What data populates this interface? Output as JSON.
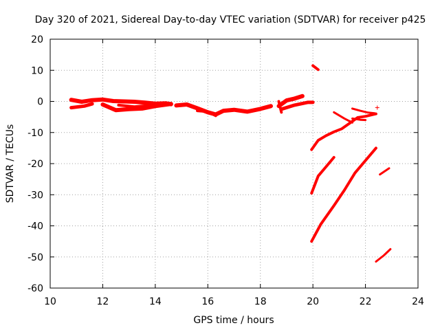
{
  "chart_data": {
    "type": "scatter",
    "title": "Day 320 of 2021, Sidereal Day-to-day VTEC variation (SDTVAR) for receiver p425",
    "xlabel": "GPS time / hours",
    "ylabel": "SDTVAR / TECUs",
    "xlim": [
      10,
      24
    ],
    "ylim": [
      -60,
      20
    ],
    "xticks": [
      10,
      12,
      14,
      16,
      18,
      20,
      22,
      24
    ],
    "yticks": [
      20,
      10,
      0,
      -10,
      -20,
      -30,
      -40,
      -50,
      -60
    ],
    "xtick_labels": [
      "10",
      "12",
      "14",
      "16",
      "18",
      "20",
      "22",
      "24"
    ],
    "ytick_labels": [
      "20",
      "10",
      "0",
      "-10",
      "-20",
      "-30",
      "-40",
      "-50",
      "-60"
    ],
    "grid": true,
    "color": "#ff0000",
    "series": [
      {
        "segments": [
          {
            "points": [
              [
                10.8,
                0.5
              ],
              [
                11.2,
                -0.1
              ],
              [
                11.6,
                0.4
              ],
              [
                12.0,
                0.6
              ],
              [
                12.4,
                0.1
              ],
              [
                12.8,
                0.0
              ],
              [
                13.2,
                -0.1
              ],
              [
                13.6,
                -0.4
              ],
              [
                14.0,
                -0.7
              ],
              [
                14.4,
                -0.6
              ],
              [
                14.6,
                -0.9
              ]
            ],
            "width": 6
          },
          {
            "points": [
              [
                10.8,
                -2.0
              ],
              [
                11.3,
                -1.5
              ],
              [
                11.6,
                -0.8
              ]
            ],
            "width": 5
          },
          {
            "points": [
              [
                12.0,
                -1.0
              ],
              [
                12.5,
                -2.8
              ],
              [
                13.0,
                -2.5
              ],
              [
                13.5,
                -2.3
              ],
              [
                14.0,
                -1.5
              ],
              [
                14.6,
                -0.8
              ]
            ],
            "width": 6
          },
          {
            "points": [
              [
                12.6,
                -1.2
              ],
              [
                13.2,
                -1.7
              ],
              [
                13.8,
                -1.3
              ]
            ],
            "width": 4
          },
          {
            "points": [
              [
                14.8,
                -1.3
              ],
              [
                15.2,
                -1.0
              ],
              [
                15.6,
                -2.2
              ],
              [
                16.0,
                -3.5
              ],
              [
                16.3,
                -4.2
              ],
              [
                16.6,
                -3.0
              ],
              [
                17.0,
                -2.7
              ],
              [
                17.5,
                -3.3
              ],
              [
                18.0,
                -2.4
              ],
              [
                18.4,
                -1.5
              ]
            ],
            "width": 6
          },
          {
            "points": [
              [
                15.6,
                -3.0
              ],
              [
                16.0,
                -3.3
              ],
              [
                16.3,
                -4.6
              ]
            ],
            "width": 4
          },
          {
            "points": [
              [
                18.7,
                -1.5
              ],
              [
                19.0,
                0.3
              ],
              [
                19.3,
                0.9
              ],
              [
                19.6,
                1.7
              ]
            ],
            "width": 6
          },
          {
            "points": [
              [
                18.8,
                -2.5
              ],
              [
                19.3,
                -1.2
              ],
              [
                19.8,
                -0.3
              ],
              [
                20.0,
                -0.3
              ]
            ],
            "width": 5
          },
          {
            "points": [
              [
                18.7,
                0.0
              ],
              [
                18.8,
                -3.5
              ]
            ],
            "width": 4
          },
          {
            "points": [
              [
                20.0,
                11.5
              ],
              [
                20.2,
                10.2
              ]
            ],
            "width": 4
          },
          {
            "points": [
              [
                19.95,
                -15.5
              ],
              [
                20.2,
                -12.5
              ],
              [
                20.5,
                -11.0
              ],
              [
                20.8,
                -9.8
              ],
              [
                21.1,
                -8.8
              ],
              [
                21.4,
                -7.0
              ],
              [
                21.7,
                -5.2
              ],
              [
                22.0,
                -4.8
              ],
              [
                22.4,
                -4.0
              ]
            ],
            "width": 4
          },
          {
            "points": [
              [
                20.8,
                -3.5
              ],
              [
                21.2,
                -5.5
              ],
              [
                21.5,
                -6.8
              ]
            ],
            "width": 3
          },
          {
            "points": [
              [
                21.5,
                -2.3
              ],
              [
                21.8,
                -3.0
              ],
              [
                22.1,
                -3.6
              ],
              [
                22.35,
                -3.8
              ]
            ],
            "width": 3
          },
          {
            "points": [
              [
                21.5,
                -5.5
              ],
              [
                21.8,
                -5.9
              ],
              [
                22.0,
                -6.0
              ]
            ],
            "width": 3
          },
          {
            "points": [
              [
                19.95,
                -29.5
              ],
              [
                20.2,
                -24.0
              ],
              [
                20.5,
                -21.0
              ],
              [
                20.8,
                -18.0
              ]
            ],
            "width": 4
          },
          {
            "points": [
              [
                19.95,
                -45.0
              ],
              [
                20.3,
                -39.5
              ],
              [
                20.8,
                -33.5
              ],
              [
                21.2,
                -28.5
              ],
              [
                21.6,
                -23.0
              ],
              [
                22.0,
                -19.0
              ],
              [
                22.4,
                -15.0
              ]
            ],
            "width": 4
          },
          {
            "points": [
              [
                22.55,
                -23.5
              ],
              [
                22.9,
                -21.5
              ]
            ],
            "width": 3
          },
          {
            "points": [
              [
                22.4,
                -51.5
              ],
              [
                22.7,
                -49.5
              ],
              [
                22.95,
                -47.5
              ]
            ],
            "width": 3
          }
        ],
        "markers": [
          [
            22.45,
            -2.0
          ]
        ]
      }
    ]
  }
}
